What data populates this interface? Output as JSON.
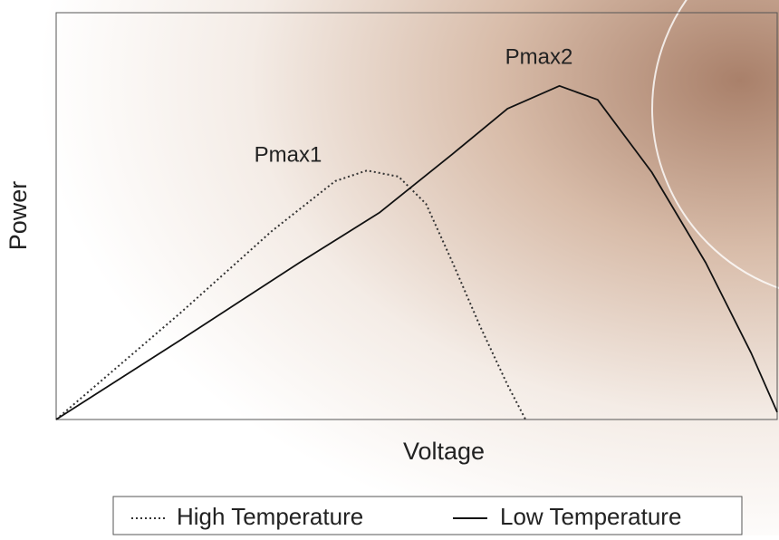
{
  "chart_data": {
    "type": "line",
    "x_label": "Voltage",
    "y_label": "Power",
    "annotations": [
      "Pmax1",
      "Pmax2"
    ],
    "xlim": [
      0,
      100
    ],
    "ylim": [
      0,
      100
    ],
    "series": [
      {
        "name": "High Temperature",
        "color": "#333333",
        "line_style": "dotted",
        "x": [
          0,
          17.3,
          29.9,
          38.7,
          43.1,
          47.5,
          51.3,
          55.0,
          58.8,
          62.6,
          65.1
        ],
        "values": [
          0,
          26.3,
          46.3,
          58.6,
          61.2,
          59.7,
          53.0,
          38.5,
          22.9,
          8.5,
          0
        ]
      },
      {
        "name": "Low Temperature",
        "color": "#111111",
        "line_style": "solid",
        "x": [
          0,
          17.3,
          33.7,
          44.8,
          55.0,
          62.6,
          69.8,
          75.1,
          82.6,
          90.1,
          96.4,
          100
        ],
        "values": [
          0,
          19.6,
          38.5,
          50.8,
          65.3,
          76.4,
          82.0,
          78.6,
          60.8,
          38.5,
          16.3,
          1.8
        ]
      }
    ]
  }
}
